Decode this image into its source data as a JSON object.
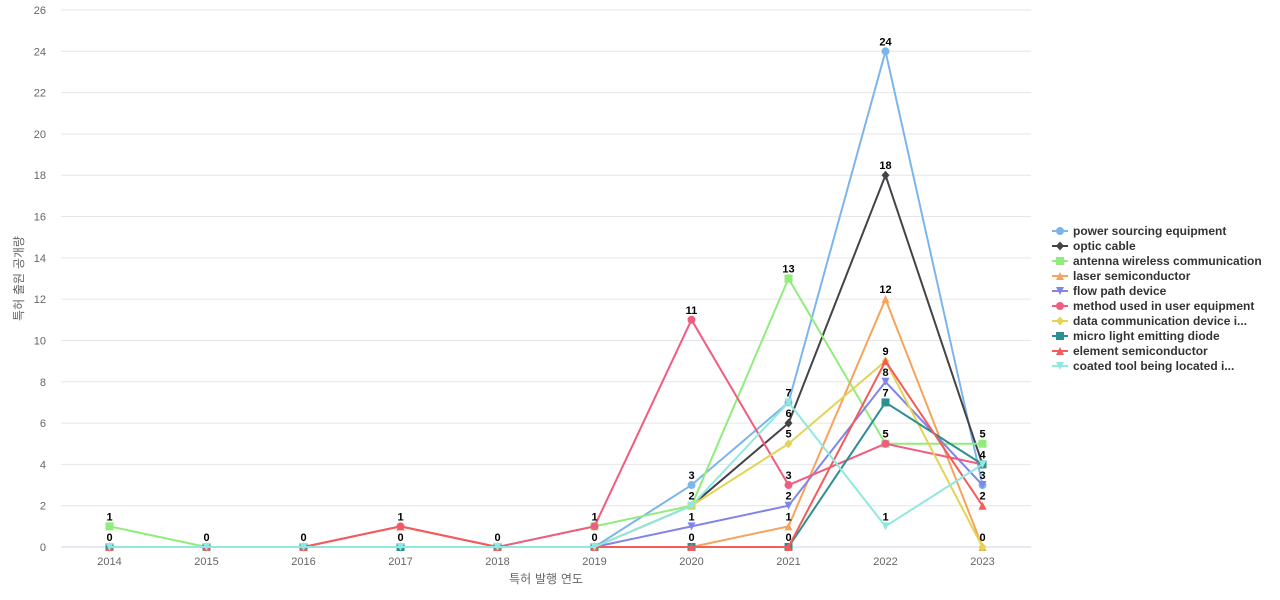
{
  "chart_data": {
    "type": "line",
    "title": "",
    "xlabel": "특허 발행 연도",
    "ylabel": "특허 출원 공개량",
    "x": [
      "2014",
      "2015",
      "2016",
      "2017",
      "2018",
      "2019",
      "2020",
      "2021",
      "2022",
      "2023"
    ],
    "ylim": [
      0,
      26
    ],
    "yticks": [
      0,
      2,
      4,
      6,
      8,
      10,
      12,
      14,
      16,
      18,
      20,
      22,
      24,
      26
    ],
    "grid": true,
    "legend_position": "right",
    "series": [
      {
        "name": "power sourcing equipment",
        "color": "#7cb5ec",
        "marker": "circle",
        "values": [
          0,
          0,
          0,
          0,
          0,
          0,
          3,
          7,
          24,
          3
        ]
      },
      {
        "name": "optic cable",
        "color": "#434348",
        "marker": "diamond",
        "values": [
          0,
          0,
          0,
          0,
          0,
          0,
          2,
          6,
          18,
          4
        ]
      },
      {
        "name": "antenna wireless communication",
        "color": "#90ed7d",
        "marker": "square",
        "values": [
          1,
          0,
          0,
          0,
          0,
          1,
          2,
          13,
          5,
          5
        ]
      },
      {
        "name": "laser semiconductor",
        "color": "#f7a35c",
        "marker": "triangle",
        "values": [
          0,
          0,
          0,
          0,
          0,
          0,
          0,
          1,
          12,
          0
        ]
      },
      {
        "name": "flow path device",
        "color": "#8085e9",
        "marker": "triangle-down",
        "values": [
          0,
          0,
          0,
          0,
          0,
          0,
          1,
          2,
          8,
          3
        ]
      },
      {
        "name": "method used in user equipment",
        "color": "#f15c80",
        "marker": "circle",
        "values": [
          0,
          0,
          0,
          1,
          0,
          1,
          11,
          3,
          5,
          4
        ]
      },
      {
        "name": "data communication device i...",
        "color": "#e4d354",
        "marker": "diamond",
        "values": [
          0,
          0,
          0,
          0,
          0,
          0,
          2,
          5,
          9,
          0
        ]
      },
      {
        "name": "micro light emitting diode",
        "color": "#2b908f",
        "marker": "square",
        "values": [
          0,
          0,
          0,
          0,
          0,
          0,
          0,
          0,
          7,
          4
        ]
      },
      {
        "name": "element semiconductor",
        "color": "#f45b5b",
        "marker": "triangle",
        "values": [
          0,
          0,
          0,
          1,
          0,
          0,
          0,
          0,
          9,
          2
        ]
      },
      {
        "name": "coated tool being located i...",
        "color": "#91e8e1",
        "marker": "triangle-down",
        "values": [
          0,
          0,
          0,
          0,
          0,
          0,
          2,
          7,
          1,
          4
        ]
      }
    ],
    "data_labels": [
      {
        "x": "2014",
        "text": "1",
        "value": 1
      },
      {
        "x": "2014",
        "text": "0",
        "value": 0
      },
      {
        "x": "2015",
        "text": "0",
        "value": 0
      },
      {
        "x": "2016",
        "text": "0",
        "value": 0
      },
      {
        "x": "2017",
        "text": "1",
        "value": 1
      },
      {
        "x": "2017",
        "text": "0",
        "value": 0
      },
      {
        "x": "2018",
        "text": "0",
        "value": 0
      },
      {
        "x": "2019",
        "text": "1",
        "value": 1
      },
      {
        "x": "2019",
        "text": "0",
        "value": 0
      },
      {
        "x": "2020",
        "text": "11",
        "value": 11
      },
      {
        "x": "2020",
        "text": "3",
        "value": 3
      },
      {
        "x": "2020",
        "text": "2",
        "value": 2
      },
      {
        "x": "2020",
        "text": "1",
        "value": 1
      },
      {
        "x": "2020",
        "text": "0",
        "value": 0
      },
      {
        "x": "2021",
        "text": "13",
        "value": 13
      },
      {
        "x": "2021",
        "text": "7",
        "value": 7
      },
      {
        "x": "2021",
        "text": "6",
        "value": 6
      },
      {
        "x": "2021",
        "text": "5",
        "value": 5
      },
      {
        "x": "2021",
        "text": "3",
        "value": 3
      },
      {
        "x": "2021",
        "text": "2",
        "value": 2
      },
      {
        "x": "2021",
        "text": "1",
        "value": 1
      },
      {
        "x": "2021",
        "text": "0",
        "value": 0
      },
      {
        "x": "2022",
        "text": "24",
        "value": 24
      },
      {
        "x": "2022",
        "text": "18",
        "value": 18
      },
      {
        "x": "2022",
        "text": "12",
        "value": 12
      },
      {
        "x": "2022",
        "text": "9",
        "value": 9
      },
      {
        "x": "2022",
        "text": "8",
        "value": 8
      },
      {
        "x": "2022",
        "text": "7",
        "value": 7
      },
      {
        "x": "2022",
        "text": "5",
        "value": 5
      },
      {
        "x": "2022",
        "text": "1",
        "value": 1
      },
      {
        "x": "2023",
        "text": "5",
        "value": 5
      },
      {
        "x": "2023",
        "text": "4",
        "value": 4
      },
      {
        "x": "2023",
        "text": "3",
        "value": 3
      },
      {
        "x": "2023",
        "text": "2",
        "value": 2
      },
      {
        "x": "2023",
        "text": "0",
        "value": 0
      }
    ]
  }
}
